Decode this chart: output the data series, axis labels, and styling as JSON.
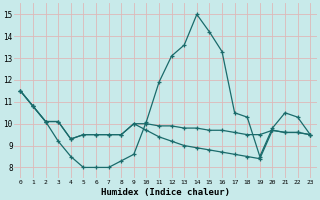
{
  "xlabel": "Humidex (Indice chaleur)",
  "background_color": "#c8eaea",
  "grid_color": "#deb8b8",
  "line_color": "#1a6b6b",
  "xlim": [
    -0.5,
    23.5
  ],
  "ylim": [
    7.5,
    15.5
  ],
  "yticks": [
    8,
    9,
    10,
    11,
    12,
    13,
    14,
    15
  ],
  "xticks": [
    0,
    1,
    2,
    3,
    4,
    5,
    6,
    7,
    8,
    9,
    10,
    11,
    12,
    13,
    14,
    15,
    16,
    17,
    18,
    19,
    20,
    21,
    22,
    23
  ],
  "line1_x": [
    0,
    1,
    2,
    3,
    4,
    5,
    6,
    7,
    8,
    9,
    10,
    11,
    12,
    13,
    14,
    15,
    16,
    17,
    18,
    19,
    20,
    21,
    22,
    23
  ],
  "line1_y": [
    11.5,
    10.8,
    10.1,
    9.2,
    8.5,
    8.0,
    8.0,
    8.0,
    8.3,
    8.6,
    10.1,
    11.9,
    13.1,
    13.6,
    15.0,
    14.2,
    13.3,
    10.5,
    10.3,
    8.5,
    9.8,
    10.5,
    10.3,
    9.5
  ],
  "line2_x": [
    0,
    1,
    2,
    3,
    4,
    5,
    6,
    7,
    8,
    9,
    10,
    11,
    12,
    13,
    14,
    15,
    16,
    17,
    18,
    19,
    20,
    21,
    22,
    23
  ],
  "line2_y": [
    11.5,
    10.8,
    10.1,
    10.1,
    9.3,
    9.5,
    9.5,
    9.5,
    9.5,
    10.0,
    10.0,
    9.9,
    9.9,
    9.8,
    9.8,
    9.7,
    9.7,
    9.6,
    9.5,
    9.5,
    9.7,
    9.6,
    9.6,
    9.5
  ],
  "line3_x": [
    0,
    1,
    2,
    3,
    4,
    5,
    6,
    7,
    8,
    9,
    10,
    11,
    12,
    13,
    14,
    15,
    16,
    17,
    18,
    19,
    20,
    21,
    22,
    23
  ],
  "line3_y": [
    11.5,
    10.8,
    10.1,
    10.1,
    9.3,
    9.5,
    9.5,
    9.5,
    9.5,
    10.0,
    9.7,
    9.4,
    9.2,
    9.0,
    8.9,
    8.8,
    8.7,
    8.6,
    8.5,
    8.4,
    9.7,
    9.6,
    9.6,
    9.5
  ]
}
